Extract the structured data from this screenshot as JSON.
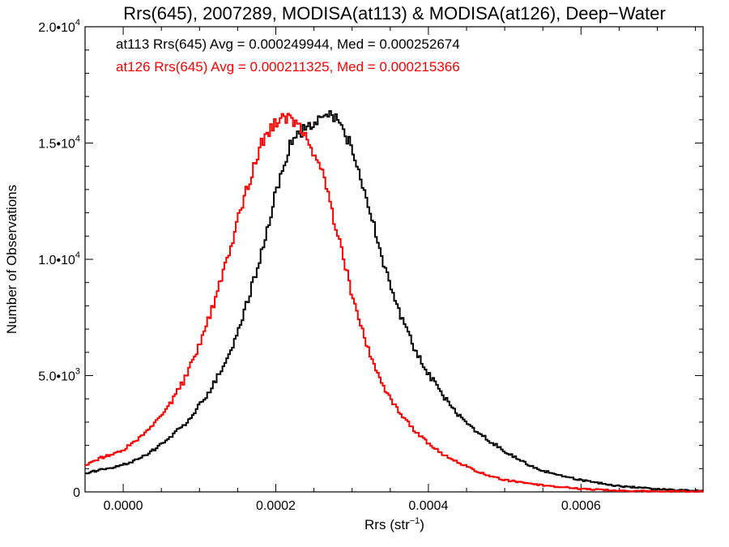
{
  "chart_data": {
    "type": "line",
    "style": "histogram-step",
    "title": "Rrs(645), 2007289, MODISA(at113) & MODISA(at126), Deep−Water",
    "xlabel": "Rrs (str",
    "xlabel_sup": "−1",
    "xlabel_end": ")",
    "ylabel": "Number of Observations",
    "xlim": [
      -5e-05,
      0.00076
    ],
    "ylim": [
      0,
      20000
    ],
    "x_ticks": [
      {
        "value": 0.0,
        "label": "0.0000"
      },
      {
        "value": 0.0002,
        "label": "0.0002"
      },
      {
        "value": 0.0004,
        "label": "0.0004"
      },
      {
        "value": 0.0006,
        "label": "0.0006"
      }
    ],
    "y_ticks": [
      {
        "value": 0,
        "base": "0",
        "exp": ""
      },
      {
        "value": 5000,
        "base": "5.0•10",
        "exp": "3"
      },
      {
        "value": 10000,
        "base": "1.0•10",
        "exp": "4"
      },
      {
        "value": 15000,
        "base": "1.5•10",
        "exp": "4"
      },
      {
        "value": 20000,
        "base": "2.0•10",
        "exp": "4"
      }
    ],
    "annotations": [
      {
        "text": "at113 Rrs(645) Avg = 0.000249944, Med = 0.000252674",
        "color": "#000000"
      },
      {
        "text": "at126 Rrs(645) Avg = 0.000211325, Med = 0.000215366",
        "color": "#ff0000"
      }
    ],
    "series": [
      {
        "color": "#000000",
        "x": [
          -5e-05,
          -3e-05,
          0.0,
          2e-05,
          4e-05,
          6e-05,
          8e-05,
          0.0001,
          0.00012,
          0.00014,
          0.00016,
          0.00018,
          0.0002,
          0.00022,
          0.00024,
          0.00026,
          0.00027,
          0.00028,
          0.0003,
          0.00032,
          0.00034,
          0.00036,
          0.00038,
          0.0004,
          0.00042,
          0.00044,
          0.00046,
          0.00048,
          0.0005,
          0.00052,
          0.00055,
          0.0006,
          0.00065,
          0.0007,
          0.00076
        ],
        "y": [
          800,
          950,
          1150,
          1400,
          1800,
          2300,
          2900,
          3700,
          4700,
          6000,
          7900,
          10100,
          12800,
          15000,
          15700,
          16100,
          16200,
          16000,
          14800,
          12500,
          10000,
          7900,
          6300,
          5100,
          4100,
          3300,
          2700,
          2200,
          1750,
          1350,
          900,
          500,
          250,
          120,
          40
        ]
      },
      {
        "color": "#ff0000",
        "x": [
          -5e-05,
          -3e-05,
          0.0,
          2e-05,
          4e-05,
          6e-05,
          8e-05,
          0.0001,
          0.00012,
          0.00014,
          0.00016,
          0.00018,
          0.0002,
          0.00021,
          0.00022,
          0.00023,
          0.00024,
          0.00026,
          0.00028,
          0.0003,
          0.00032,
          0.00034,
          0.00036,
          0.00038,
          0.0004,
          0.00042,
          0.00044,
          0.00046,
          0.00048,
          0.0005,
          0.00055,
          0.0006,
          0.00065,
          0.0007,
          0.00076
        ],
        "y": [
          1100,
          1450,
          1800,
          2300,
          2900,
          3700,
          4800,
          6300,
          8200,
          10500,
          12800,
          14900,
          15900,
          16100,
          16000,
          15700,
          15300,
          13800,
          11300,
          8400,
          6200,
          4600,
          3500,
          2700,
          2100,
          1600,
          1250,
          950,
          700,
          520,
          280,
          130,
          60,
          25,
          10
        ]
      }
    ]
  }
}
